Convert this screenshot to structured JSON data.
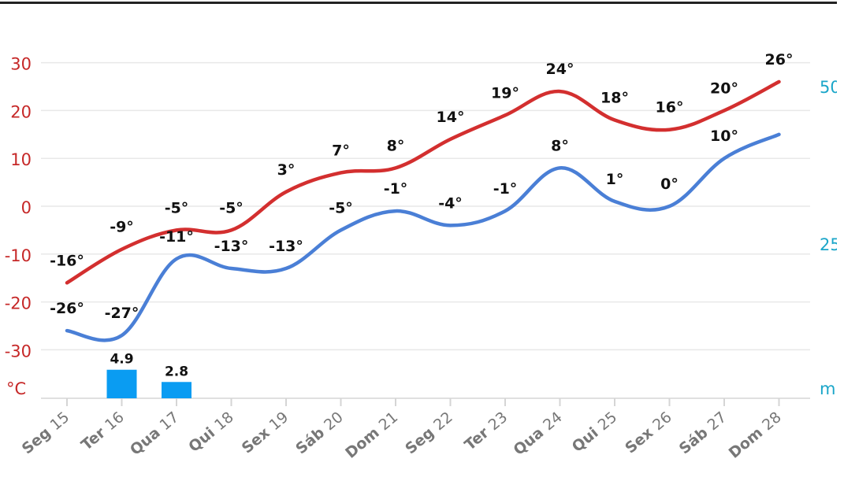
{
  "chart_data": {
    "type": "line",
    "unit_left": "°C",
    "unit_right": "mm",
    "ylim": [
      -40,
      30
    ],
    "y_right_labels": [
      "50",
      "25"
    ],
    "y_ticks": [
      30,
      20,
      10,
      0,
      -10,
      -20,
      -30
    ],
    "categories": [
      {
        "day": "Seg",
        "num": "15"
      },
      {
        "day": "Ter",
        "num": "16"
      },
      {
        "day": "Qua",
        "num": "17"
      },
      {
        "day": "Qui",
        "num": "18"
      },
      {
        "day": "Sex",
        "num": "19"
      },
      {
        "day": "Sáb",
        "num": "20"
      },
      {
        "day": "Dom",
        "num": "21"
      },
      {
        "day": "Seg",
        "num": "22"
      },
      {
        "day": "Ter",
        "num": "23"
      },
      {
        "day": "Qua",
        "num": "24"
      },
      {
        "day": "Qui",
        "num": "25"
      },
      {
        "day": "Sex",
        "num": "26"
      },
      {
        "day": "Sáb",
        "num": "27"
      },
      {
        "day": "Dom",
        "num": "28"
      }
    ],
    "series": [
      {
        "key": "max",
        "color": "#d32f2f",
        "values": [
          -16,
          -9,
          -5,
          -5,
          3,
          7,
          8,
          14,
          19,
          24,
          18,
          16,
          20,
          26
        ],
        "labels": [
          "-16°",
          "-9°",
          "-5°",
          "-5°",
          "3°",
          "7°",
          "8°",
          "14°",
          "19°",
          "24°",
          "18°",
          "16°",
          "20°",
          "26°"
        ]
      },
      {
        "key": "min",
        "color": "#4a7fd6",
        "values": [
          -26,
          -27,
          -11,
          -13,
          -13,
          -5,
          -1,
          -4,
          -1,
          8,
          1,
          0,
          10,
          15
        ],
        "labels": [
          "-26°",
          "-27°",
          "-11°",
          "-13°",
          "-13°",
          "-5°",
          "-1°",
          "-4°",
          "-1°",
          "8°",
          "1°",
          "0°",
          "10°",
          ""
        ]
      }
    ],
    "precipitation": [
      {
        "index": 1,
        "value": 4.9,
        "label": "4.9"
      },
      {
        "index": 2,
        "value": 2.8,
        "label": "2.8"
      }
    ],
    "precip_color": "#0a9cf2",
    "grid": true
  }
}
